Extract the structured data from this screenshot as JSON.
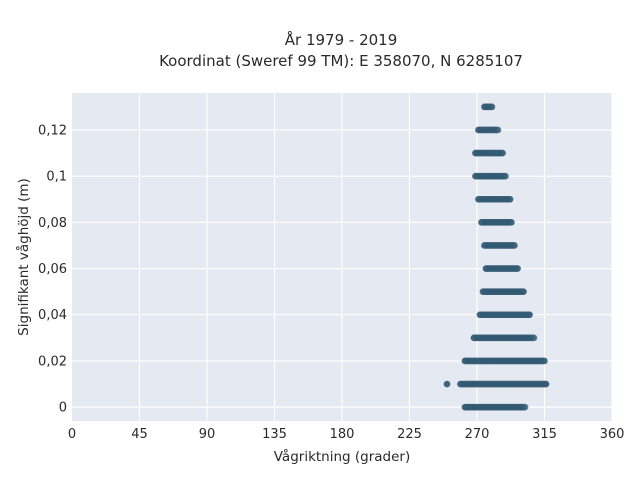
{
  "chart_data": {
    "type": "scatter",
    "title": [
      "År 1979 - 2019",
      "Koordinat (Sweref 99 TM): E 358070, N 6285107"
    ],
    "xlabel": "Vågriktning (grader)",
    "ylabel": "Signifikant våghöjd (m)",
    "xlim": [
      0,
      360
    ],
    "ylim": [
      -0.006,
      0.136
    ],
    "xticks": [
      0,
      45,
      90,
      135,
      180,
      225,
      270,
      315,
      360
    ],
    "xtick_labels": [
      "0",
      "45",
      "90",
      "135",
      "180",
      "225",
      "270",
      "315",
      "360"
    ],
    "yticks": [
      0,
      0.02,
      0.04,
      0.06,
      0.08,
      0.1,
      0.12
    ],
    "ytick_labels": [
      "0",
      "0,02",
      "0,04",
      "0,06",
      "0,08",
      "0,1",
      "0,12"
    ],
    "grid": true,
    "background_color": "#e5e9f2",
    "marker_color": "#2e5670",
    "bands": [
      {
        "y": 0.0,
        "x_min": 262,
        "x_max": 302
      },
      {
        "y": 0.01,
        "x_min": 259,
        "x_max": 316
      },
      {
        "y": 0.02,
        "x_min": 262,
        "x_max": 315
      },
      {
        "y": 0.03,
        "x_min": 268,
        "x_max": 308
      },
      {
        "y": 0.04,
        "x_min": 272,
        "x_max": 305
      },
      {
        "y": 0.05,
        "x_min": 274,
        "x_max": 301
      },
      {
        "y": 0.06,
        "x_min": 276,
        "x_max": 297
      },
      {
        "y": 0.07,
        "x_min": 275,
        "x_max": 295
      },
      {
        "y": 0.08,
        "x_min": 273,
        "x_max": 293
      },
      {
        "y": 0.09,
        "x_min": 271,
        "x_max": 292
      },
      {
        "y": 0.1,
        "x_min": 269,
        "x_max": 289
      },
      {
        "y": 0.11,
        "x_min": 269,
        "x_max": 287
      },
      {
        "y": 0.12,
        "x_min": 271,
        "x_max": 284
      },
      {
        "y": 0.13,
        "x_min": 275,
        "x_max": 280
      }
    ],
    "points": [
      {
        "x": 250,
        "y": 0.01
      }
    ]
  }
}
